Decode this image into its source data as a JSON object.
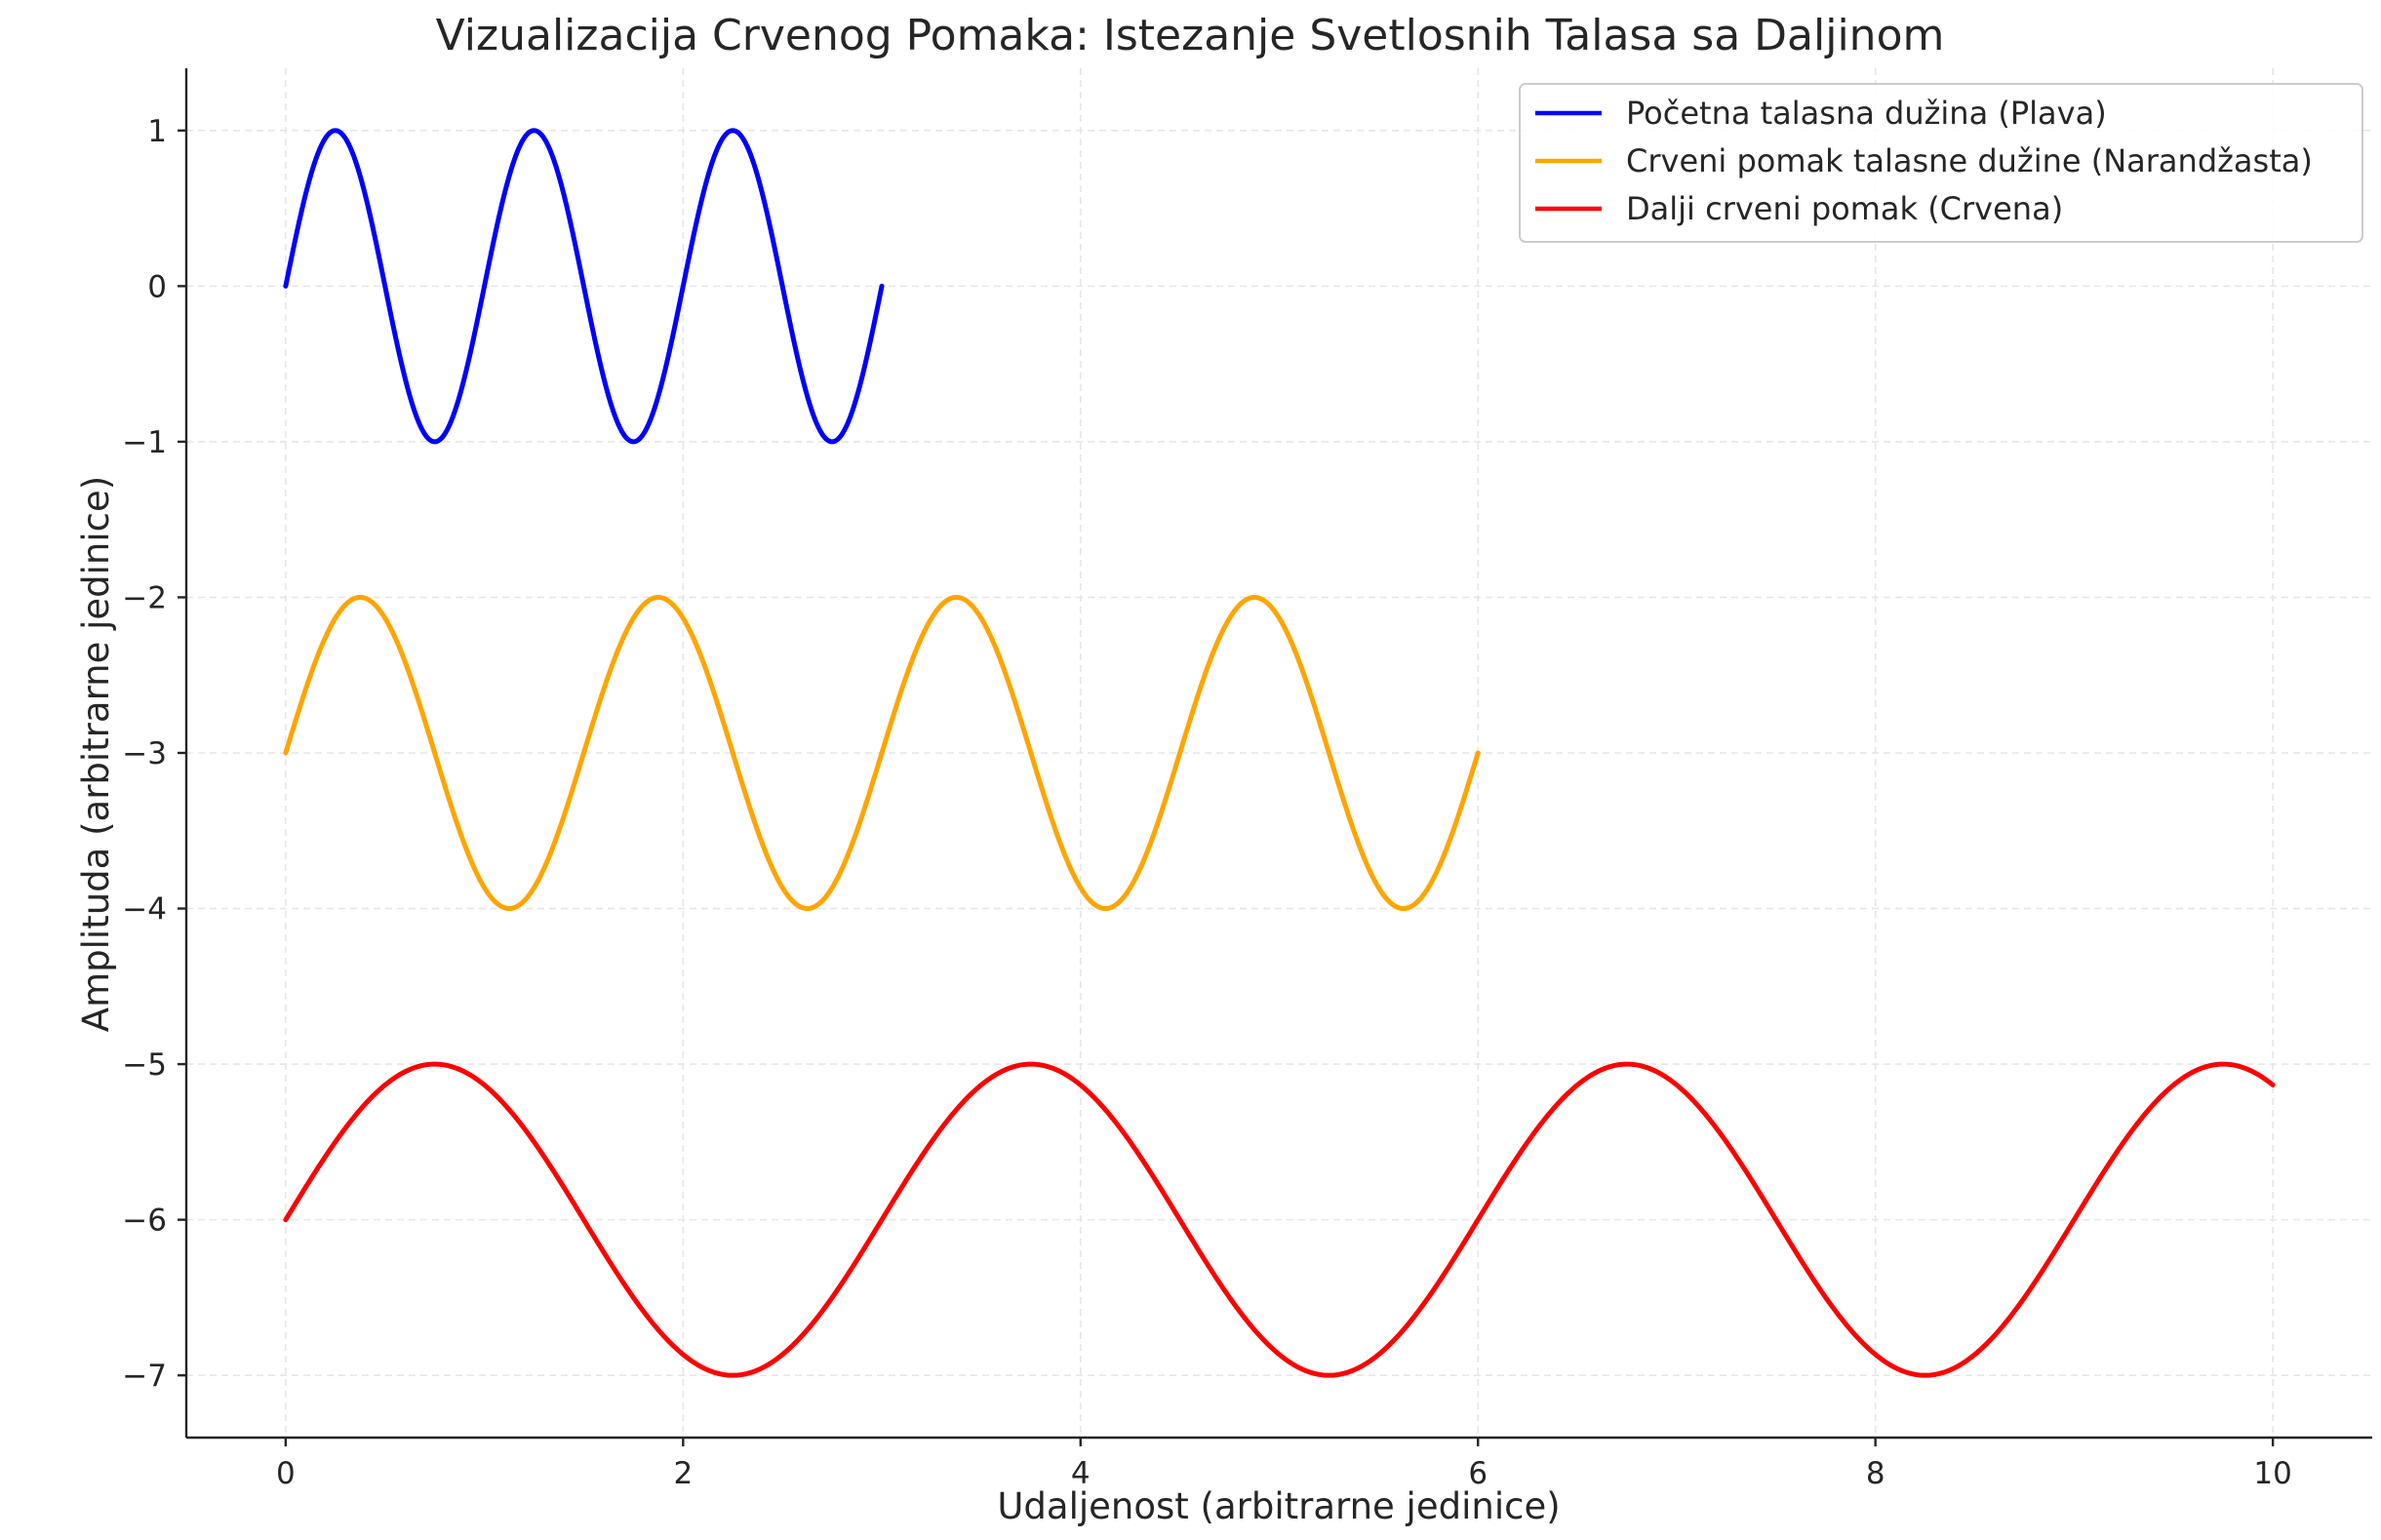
{
  "chart_data": {
    "type": "line",
    "title": "Vizualizacija Crvenog Pomaka: Istezanje Svetlosnih Talasa sa Daljinom",
    "xlabel": "Udaljenost (arbitrarne jedinice)",
    "ylabel": "Amplituda (arbitrarne jedinice)",
    "xlim": [
      -0.5,
      10.5
    ],
    "ylim": [
      -7.4,
      1.4
    ],
    "xticks": [
      0,
      2,
      4,
      6,
      8,
      10
    ],
    "xtick_labels": [
      "0",
      "2",
      "4",
      "6",
      "8",
      "10"
    ],
    "yticks": [
      1,
      0,
      -1,
      -2,
      -3,
      -4,
      -5,
      -6,
      -7
    ],
    "ytick_labels": [
      "1",
      "0",
      "−1",
      "−2",
      "−3",
      "−4",
      "−5",
      "−6",
      "−7"
    ],
    "grid": true,
    "legend_position": "top-right",
    "series": [
      {
        "name": "Početna talasna dužina (Plava)",
        "color": "#0000ff",
        "x_start": 0,
        "x_end": 3,
        "wavelength": 1.0,
        "amplitude": 1,
        "offset": 0
      },
      {
        "name": "Crveni pomak talasne dužine (Narandžasta)",
        "color": "#ffa500",
        "x_start": 0,
        "x_end": 6,
        "wavelength": 1.5,
        "amplitude": 1,
        "offset": -3
      },
      {
        "name": "Dalji crveni pomak (Crvena)",
        "color": "#ff0000",
        "x_start": 0,
        "x_end": 10,
        "wavelength": 3.0,
        "amplitude": 1,
        "offset": -6
      }
    ]
  }
}
